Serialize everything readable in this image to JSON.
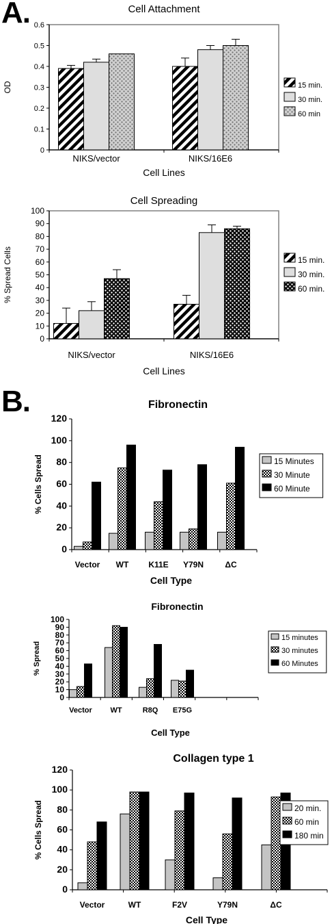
{
  "panels": {
    "a": "A.",
    "b": "B."
  },
  "colors": {
    "ink": "#000000",
    "light_gray": "#d9d9d9",
    "mid_gray": "#bfbfbf",
    "frame": "#808080"
  },
  "chart_data": [
    {
      "id": "attachment",
      "type": "bar",
      "title": "Cell Attachment",
      "xlabel": "Cell Lines",
      "ylabel": "OD",
      "categories": [
        "NIKS/vector",
        "NIKS/16E6"
      ],
      "ylim": [
        0,
        0.6
      ],
      "yticks": [
        0,
        0.1,
        0.2,
        0.3,
        0.4,
        0.5,
        0.6
      ],
      "grid": false,
      "legend_position": "right",
      "series": [
        {
          "name": "15 min.",
          "pattern": "hatch",
          "values": [
            0.39,
            0.4
          ],
          "errors": [
            0.015,
            0.04
          ]
        },
        {
          "name": "30 min.",
          "pattern": "light",
          "values": [
            0.42,
            0.48
          ],
          "errors": [
            0.015,
            0.02
          ]
        },
        {
          "name": "60 min",
          "pattern": "dots_gray",
          "values": [
            0.46,
            0.5
          ],
          "errors": [
            0,
            0.03
          ]
        }
      ]
    },
    {
      "id": "spreading",
      "type": "bar",
      "title": "Cell Spreading",
      "xlabel": "Cell Lines",
      "ylabel": "% Spread Cells",
      "categories": [
        "NIKS/vector",
        "NIKS/16E6"
      ],
      "ylim": [
        0,
        100
      ],
      "yticks": [
        0,
        10,
        20,
        30,
        40,
        50,
        60,
        70,
        80,
        90,
        100
      ],
      "grid": false,
      "legend_position": "right",
      "series": [
        {
          "name": "15 min.",
          "pattern": "hatch",
          "values": [
            12,
            27
          ],
          "errors": [
            12,
            7
          ]
        },
        {
          "name": "30 min.",
          "pattern": "light",
          "values": [
            22,
            83
          ],
          "errors": [
            7,
            6
          ]
        },
        {
          "name": "60 min.",
          "pattern": "dots_black",
          "values": [
            47,
            86
          ],
          "errors": [
            7,
            2
          ]
        }
      ]
    },
    {
      "id": "fibronectin1",
      "type": "bar",
      "title": "Fibronectin",
      "xlabel": "Cell Type",
      "ylabel": "% Cells Spread",
      "categories": [
        "Vector",
        "WT",
        "K11E",
        "Y79N",
        "ΔC"
      ],
      "ylim": [
        0,
        120
      ],
      "yticks": [
        0,
        20,
        40,
        60,
        80,
        100,
        120
      ],
      "grid": false,
      "legend_position": "right",
      "series": [
        {
          "name": "15 Minutes",
          "pattern": "gray",
          "values": [
            3,
            15,
            16,
            16,
            16
          ]
        },
        {
          "name": "30 Minute",
          "pattern": "check",
          "values": [
            7,
            75,
            44,
            19,
            61
          ]
        },
        {
          "name": "60 Minute",
          "pattern": "black",
          "values": [
            62,
            96,
            73,
            78,
            94
          ]
        }
      ]
    },
    {
      "id": "fibronectin2",
      "type": "bar",
      "title": "Fibronectin",
      "xlabel": "Cell Type",
      "ylabel": "% Spread",
      "categories": [
        "Vector",
        "WT",
        "R8Q",
        "E75G",
        "",
        ""
      ],
      "ylim": [
        0,
        100
      ],
      "yticks": [
        0,
        10,
        20,
        30,
        40,
        50,
        60,
        70,
        80,
        90,
        100
      ],
      "grid": false,
      "legend_position": "right",
      "series": [
        {
          "name": "15 minutes",
          "pattern": "gray",
          "values": [
            10,
            64,
            13,
            22,
            null,
            null
          ]
        },
        {
          "name": "30 minutes",
          "pattern": "check",
          "values": [
            14,
            92,
            24,
            21,
            null,
            null
          ]
        },
        {
          "name": "60 Minutes",
          "pattern": "black",
          "values": [
            43,
            90,
            68,
            35,
            null,
            null
          ]
        }
      ]
    },
    {
      "id": "collagen",
      "type": "bar",
      "title": "Collagen type 1",
      "xlabel": "Cell Type",
      "ylabel": "% Cells Spread",
      "categories": [
        "Vector",
        "WT",
        "F2V",
        "Y79N",
        "ΔC"
      ],
      "ylim": [
        0,
        120
      ],
      "yticks": [
        0,
        20,
        40,
        60,
        80,
        100,
        120
      ],
      "grid": false,
      "legend_position": "right",
      "series": [
        {
          "name": "20 min.",
          "pattern": "gray",
          "values": [
            7,
            76,
            30,
            12,
            45
          ]
        },
        {
          "name": "60 min",
          "pattern": "check",
          "values": [
            48,
            98,
            79,
            56,
            93
          ]
        },
        {
          "name": "180 min",
          "pattern": "black",
          "values": [
            68,
            98,
            97,
            92,
            97
          ]
        }
      ]
    }
  ]
}
